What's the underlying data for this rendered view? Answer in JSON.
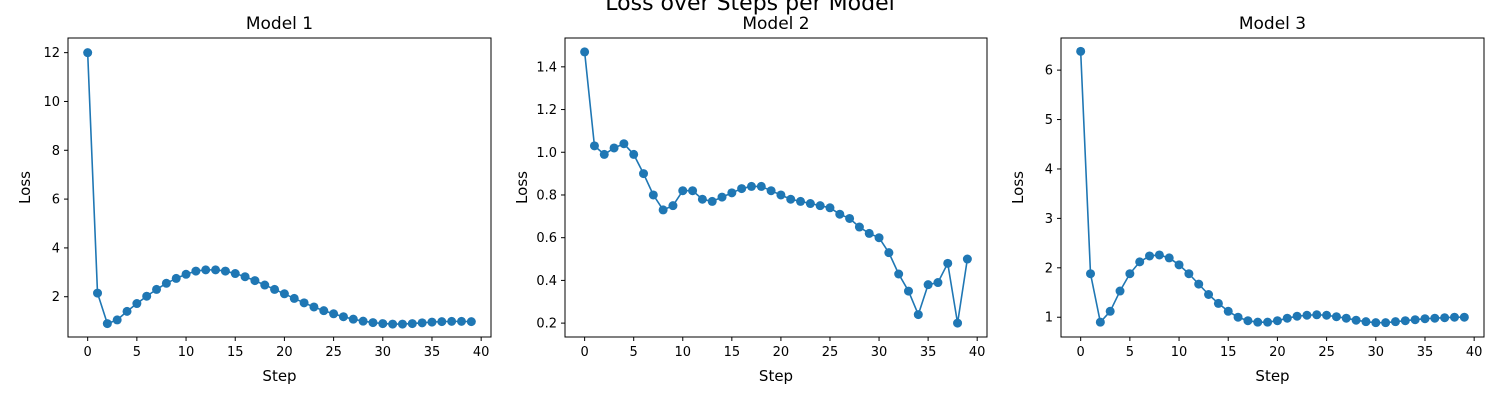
{
  "figure": {
    "suptitle": "Loss over Steps per Model"
  },
  "style": {
    "line_color": "#1f77b4"
  },
  "chart_data": [
    {
      "type": "line",
      "title": "Model 1",
      "xlabel": "Step",
      "ylabel": "Loss",
      "xlim": [
        -2,
        41
      ],
      "ylim": [
        0.35,
        12.6
      ],
      "xticks": [
        0,
        5,
        10,
        15,
        20,
        25,
        30,
        35,
        40
      ],
      "yticks": [
        2,
        4,
        6,
        8,
        10,
        12
      ],
      "marker": "circle",
      "grid": false,
      "x": [
        0,
        1,
        2,
        3,
        4,
        5,
        6,
        7,
        8,
        9,
        10,
        11,
        12,
        13,
        14,
        15,
        16,
        17,
        18,
        19,
        20,
        21,
        22,
        23,
        24,
        25,
        26,
        27,
        28,
        29,
        30,
        31,
        32,
        33,
        34,
        35,
        36,
        37,
        38,
        39
      ],
      "y": [
        12.0,
        2.15,
        0.9,
        1.05,
        1.4,
        1.72,
        2.02,
        2.3,
        2.55,
        2.75,
        2.92,
        3.05,
        3.1,
        3.1,
        3.05,
        2.95,
        2.82,
        2.66,
        2.48,
        2.3,
        2.12,
        1.93,
        1.75,
        1.58,
        1.43,
        1.3,
        1.18,
        1.08,
        1.0,
        0.94,
        0.9,
        0.88,
        0.88,
        0.9,
        0.93,
        0.96,
        0.98,
        0.99,
        0.99,
        0.98
      ]
    },
    {
      "type": "line",
      "title": "Model 2",
      "xlabel": "Step",
      "ylabel": "Loss",
      "xlim": [
        -2,
        41
      ],
      "ylim": [
        0.135,
        1.535
      ],
      "xticks": [
        0,
        5,
        10,
        15,
        20,
        25,
        30,
        35,
        40
      ],
      "yticks": [
        0.2,
        0.4,
        0.6,
        0.8,
        1.0,
        1.2,
        1.4
      ],
      "ytick_format": "0.0",
      "marker": "circle",
      "grid": false,
      "x": [
        0,
        1,
        2,
        3,
        4,
        5,
        6,
        7,
        8,
        9,
        10,
        11,
        12,
        13,
        14,
        15,
        16,
        17,
        18,
        19,
        20,
        21,
        22,
        23,
        24,
        25,
        26,
        27,
        28,
        29,
        30,
        31,
        32,
        33,
        34,
        35,
        36,
        37,
        38,
        39
      ],
      "y": [
        1.47,
        1.03,
        0.99,
        1.02,
        1.04,
        0.99,
        0.9,
        0.8,
        0.73,
        0.75,
        0.82,
        0.82,
        0.78,
        0.77,
        0.79,
        0.81,
        0.83,
        0.84,
        0.84,
        0.82,
        0.8,
        0.78,
        0.77,
        0.76,
        0.75,
        0.74,
        0.71,
        0.69,
        0.65,
        0.62,
        0.6,
        0.53,
        0.43,
        0.35,
        0.24,
        0.38,
        0.39,
        0.48,
        0.2,
        0.5
      ]
    },
    {
      "type": "line",
      "title": "Model 3",
      "xlabel": "Step",
      "ylabel": "Loss",
      "xlim": [
        -2,
        41
      ],
      "ylim": [
        0.6,
        6.65
      ],
      "xticks": [
        0,
        5,
        10,
        15,
        20,
        25,
        30,
        35,
        40
      ],
      "yticks": [
        1,
        2,
        3,
        4,
        5,
        6
      ],
      "marker": "circle",
      "grid": false,
      "x": [
        0,
        1,
        2,
        3,
        4,
        5,
        6,
        7,
        8,
        9,
        10,
        11,
        12,
        13,
        14,
        15,
        16,
        17,
        18,
        19,
        20,
        21,
        22,
        23,
        24,
        25,
        26,
        27,
        28,
        29,
        30,
        31,
        32,
        33,
        34,
        35,
        36,
        37,
        38,
        39
      ],
      "y": [
        6.38,
        1.88,
        0.9,
        1.12,
        1.53,
        1.88,
        2.12,
        2.24,
        2.26,
        2.2,
        2.06,
        1.88,
        1.67,
        1.46,
        1.28,
        1.12,
        1.0,
        0.93,
        0.9,
        0.9,
        0.93,
        0.98,
        1.02,
        1.04,
        1.05,
        1.04,
        1.01,
        0.98,
        0.94,
        0.91,
        0.89,
        0.89,
        0.91,
        0.93,
        0.95,
        0.97,
        0.98,
        0.99,
        1.0,
        1.0
      ]
    }
  ]
}
